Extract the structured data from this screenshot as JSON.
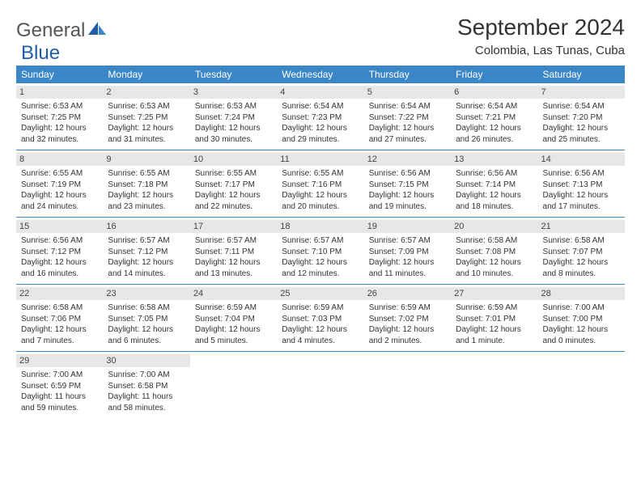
{
  "brand": {
    "word1": "General",
    "word2": "Blue"
  },
  "title": "September 2024",
  "subtitle": "Colombia, Las Tunas, Cuba",
  "colors": {
    "accent": "#3b86c6",
    "header_bg": "#3b86c6",
    "header_text": "#ffffff",
    "daynum_bg": "#e7e7e7",
    "body_text": "#333333",
    "page_bg": "#ffffff"
  },
  "layout": {
    "columns": 7,
    "rows": 5
  },
  "weekdays": [
    "Sunday",
    "Monday",
    "Tuesday",
    "Wednesday",
    "Thursday",
    "Friday",
    "Saturday"
  ],
  "days": [
    {
      "n": "1",
      "sunrise": "Sunrise: 6:53 AM",
      "sunset": "Sunset: 7:25 PM",
      "day1": "Daylight: 12 hours",
      "day2": "and 32 minutes."
    },
    {
      "n": "2",
      "sunrise": "Sunrise: 6:53 AM",
      "sunset": "Sunset: 7:25 PM",
      "day1": "Daylight: 12 hours",
      "day2": "and 31 minutes."
    },
    {
      "n": "3",
      "sunrise": "Sunrise: 6:53 AM",
      "sunset": "Sunset: 7:24 PM",
      "day1": "Daylight: 12 hours",
      "day2": "and 30 minutes."
    },
    {
      "n": "4",
      "sunrise": "Sunrise: 6:54 AM",
      "sunset": "Sunset: 7:23 PM",
      "day1": "Daylight: 12 hours",
      "day2": "and 29 minutes."
    },
    {
      "n": "5",
      "sunrise": "Sunrise: 6:54 AM",
      "sunset": "Sunset: 7:22 PM",
      "day1": "Daylight: 12 hours",
      "day2": "and 27 minutes."
    },
    {
      "n": "6",
      "sunrise": "Sunrise: 6:54 AM",
      "sunset": "Sunset: 7:21 PM",
      "day1": "Daylight: 12 hours",
      "day2": "and 26 minutes."
    },
    {
      "n": "7",
      "sunrise": "Sunrise: 6:54 AM",
      "sunset": "Sunset: 7:20 PM",
      "day1": "Daylight: 12 hours",
      "day2": "and 25 minutes."
    },
    {
      "n": "8",
      "sunrise": "Sunrise: 6:55 AM",
      "sunset": "Sunset: 7:19 PM",
      "day1": "Daylight: 12 hours",
      "day2": "and 24 minutes."
    },
    {
      "n": "9",
      "sunrise": "Sunrise: 6:55 AM",
      "sunset": "Sunset: 7:18 PM",
      "day1": "Daylight: 12 hours",
      "day2": "and 23 minutes."
    },
    {
      "n": "10",
      "sunrise": "Sunrise: 6:55 AM",
      "sunset": "Sunset: 7:17 PM",
      "day1": "Daylight: 12 hours",
      "day2": "and 22 minutes."
    },
    {
      "n": "11",
      "sunrise": "Sunrise: 6:55 AM",
      "sunset": "Sunset: 7:16 PM",
      "day1": "Daylight: 12 hours",
      "day2": "and 20 minutes."
    },
    {
      "n": "12",
      "sunrise": "Sunrise: 6:56 AM",
      "sunset": "Sunset: 7:15 PM",
      "day1": "Daylight: 12 hours",
      "day2": "and 19 minutes."
    },
    {
      "n": "13",
      "sunrise": "Sunrise: 6:56 AM",
      "sunset": "Sunset: 7:14 PM",
      "day1": "Daylight: 12 hours",
      "day2": "and 18 minutes."
    },
    {
      "n": "14",
      "sunrise": "Sunrise: 6:56 AM",
      "sunset": "Sunset: 7:13 PM",
      "day1": "Daylight: 12 hours",
      "day2": "and 17 minutes."
    },
    {
      "n": "15",
      "sunrise": "Sunrise: 6:56 AM",
      "sunset": "Sunset: 7:12 PM",
      "day1": "Daylight: 12 hours",
      "day2": "and 16 minutes."
    },
    {
      "n": "16",
      "sunrise": "Sunrise: 6:57 AM",
      "sunset": "Sunset: 7:12 PM",
      "day1": "Daylight: 12 hours",
      "day2": "and 14 minutes."
    },
    {
      "n": "17",
      "sunrise": "Sunrise: 6:57 AM",
      "sunset": "Sunset: 7:11 PM",
      "day1": "Daylight: 12 hours",
      "day2": "and 13 minutes."
    },
    {
      "n": "18",
      "sunrise": "Sunrise: 6:57 AM",
      "sunset": "Sunset: 7:10 PM",
      "day1": "Daylight: 12 hours",
      "day2": "and 12 minutes."
    },
    {
      "n": "19",
      "sunrise": "Sunrise: 6:57 AM",
      "sunset": "Sunset: 7:09 PM",
      "day1": "Daylight: 12 hours",
      "day2": "and 11 minutes."
    },
    {
      "n": "20",
      "sunrise": "Sunrise: 6:58 AM",
      "sunset": "Sunset: 7:08 PM",
      "day1": "Daylight: 12 hours",
      "day2": "and 10 minutes."
    },
    {
      "n": "21",
      "sunrise": "Sunrise: 6:58 AM",
      "sunset": "Sunset: 7:07 PM",
      "day1": "Daylight: 12 hours",
      "day2": "and 8 minutes."
    },
    {
      "n": "22",
      "sunrise": "Sunrise: 6:58 AM",
      "sunset": "Sunset: 7:06 PM",
      "day1": "Daylight: 12 hours",
      "day2": "and 7 minutes."
    },
    {
      "n": "23",
      "sunrise": "Sunrise: 6:58 AM",
      "sunset": "Sunset: 7:05 PM",
      "day1": "Daylight: 12 hours",
      "day2": "and 6 minutes."
    },
    {
      "n": "24",
      "sunrise": "Sunrise: 6:59 AM",
      "sunset": "Sunset: 7:04 PM",
      "day1": "Daylight: 12 hours",
      "day2": "and 5 minutes."
    },
    {
      "n": "25",
      "sunrise": "Sunrise: 6:59 AM",
      "sunset": "Sunset: 7:03 PM",
      "day1": "Daylight: 12 hours",
      "day2": "and 4 minutes."
    },
    {
      "n": "26",
      "sunrise": "Sunrise: 6:59 AM",
      "sunset": "Sunset: 7:02 PM",
      "day1": "Daylight: 12 hours",
      "day2": "and 2 minutes."
    },
    {
      "n": "27",
      "sunrise": "Sunrise: 6:59 AM",
      "sunset": "Sunset: 7:01 PM",
      "day1": "Daylight: 12 hours",
      "day2": "and 1 minute."
    },
    {
      "n": "28",
      "sunrise": "Sunrise: 7:00 AM",
      "sunset": "Sunset: 7:00 PM",
      "day1": "Daylight: 12 hours",
      "day2": "and 0 minutes."
    },
    {
      "n": "29",
      "sunrise": "Sunrise: 7:00 AM",
      "sunset": "Sunset: 6:59 PM",
      "day1": "Daylight: 11 hours",
      "day2": "and 59 minutes."
    },
    {
      "n": "30",
      "sunrise": "Sunrise: 7:00 AM",
      "sunset": "Sunset: 6:58 PM",
      "day1": "Daylight: 11 hours",
      "day2": "and 58 minutes."
    }
  ]
}
